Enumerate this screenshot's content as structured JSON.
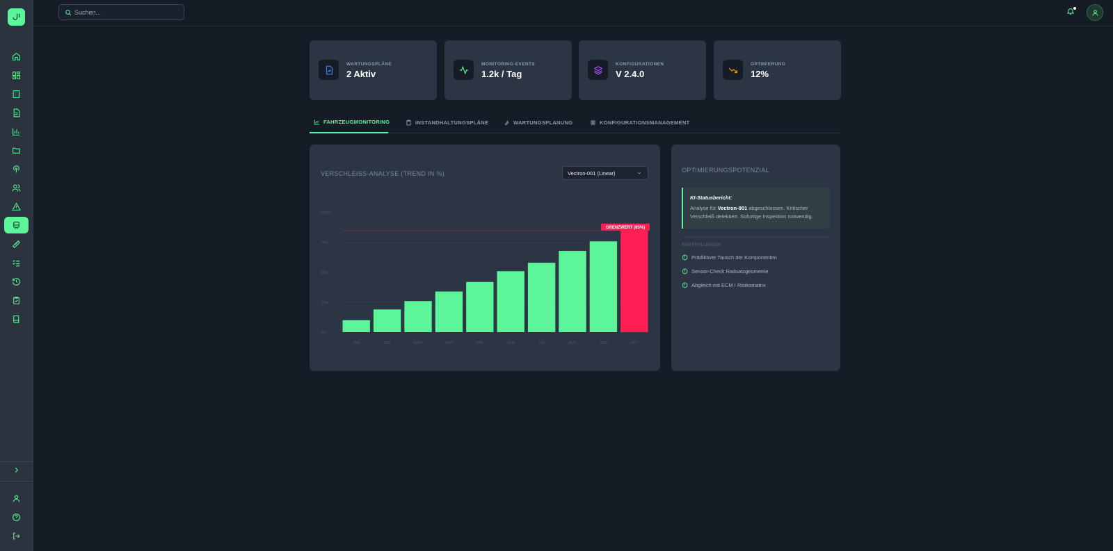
{
  "search": {
    "placeholder": "Suchen..."
  },
  "stats": [
    {
      "label": "WARTUNGSPLÄNE",
      "value": "2 Aktiv",
      "icon": "file-chart-icon",
      "color": "#3b82f6"
    },
    {
      "label": "MONITORING-EVENTS",
      "value": "1.2k / Tag",
      "icon": "activity-icon",
      "color": "#5cf59a"
    },
    {
      "label": "KONFIGURATIONEN",
      "value": "V 2.4.0",
      "icon": "layers-icon",
      "color": "#a855f7"
    },
    {
      "label": "OPTIMIERUNG",
      "value": "12%",
      "icon": "trending-down-icon",
      "color": "#f59e0b"
    }
  ],
  "tabs": [
    {
      "label": "FAHRZEUGMONITORING",
      "icon": "line-chart-icon"
    },
    {
      "label": "INSTANDHALTUNGSPLÄNE",
      "icon": "clipboard-icon"
    },
    {
      "label": "WARTUNGSPLANUNG",
      "icon": "wrench-icon"
    },
    {
      "label": "KONFIGURATIONSMANAGEMENT",
      "icon": "cpu-icon"
    }
  ],
  "wear": {
    "title": "VERSCHLEISS-ANALYSE (TREND IN %)",
    "select_value": "Vectron-001 (Linear)"
  },
  "chart_data": {
    "type": "bar",
    "title": "VERSCHLEISS-ANALYSE (TREND IN %)",
    "categories": [
      "JAN",
      "FEB",
      "MÄR",
      "APR",
      "MAI",
      "JUN",
      "JUL",
      "AUG",
      "SEP",
      "OKT"
    ],
    "values": [
      10,
      19,
      26,
      34,
      42,
      51,
      58,
      68,
      76,
      86
    ],
    "ylim": [
      0,
      100
    ],
    "yticks": [
      "0%",
      "25%",
      "50%",
      "75%",
      "100%"
    ],
    "threshold": {
      "value": 85,
      "label": "GRENZWERT (85%)"
    },
    "colors": {
      "normal": "#5cf59a",
      "critical": "#ff1f55"
    },
    "grid": true
  },
  "optimization": {
    "title": "OPTIMIERUNGSPOTENZIAL",
    "report_title": "KI-Statusbericht:",
    "report_pre": "Analyse für ",
    "report_bold": "Vectron-001",
    "report_post": " abgeschlossen. Kritischer Verschleiß detektiert. Sofortige Inspektion notwendig.",
    "recommendations_label": "EMPFEHLUNGEN:",
    "recommendations": [
      "Prädiktiver Tausch der Komponenten",
      "Sensor-Check Radsatzgeometrie",
      "Abgleich mit ECM I Risikomatrix"
    ]
  },
  "sidebar": {
    "items": [
      "home-icon",
      "dashboard-icon",
      "building-icon",
      "document-icon",
      "bar-chart-icon",
      "folder-icon",
      "podcast-icon",
      "users-icon",
      "alert-triangle-icon",
      "train-icon",
      "ruler-icon",
      "list-checks-icon",
      "history-icon",
      "clipboard-check-icon",
      "book-icon"
    ],
    "active": "train-icon",
    "bottom": [
      "user-icon",
      "help-circle-icon",
      "logout-icon"
    ]
  }
}
